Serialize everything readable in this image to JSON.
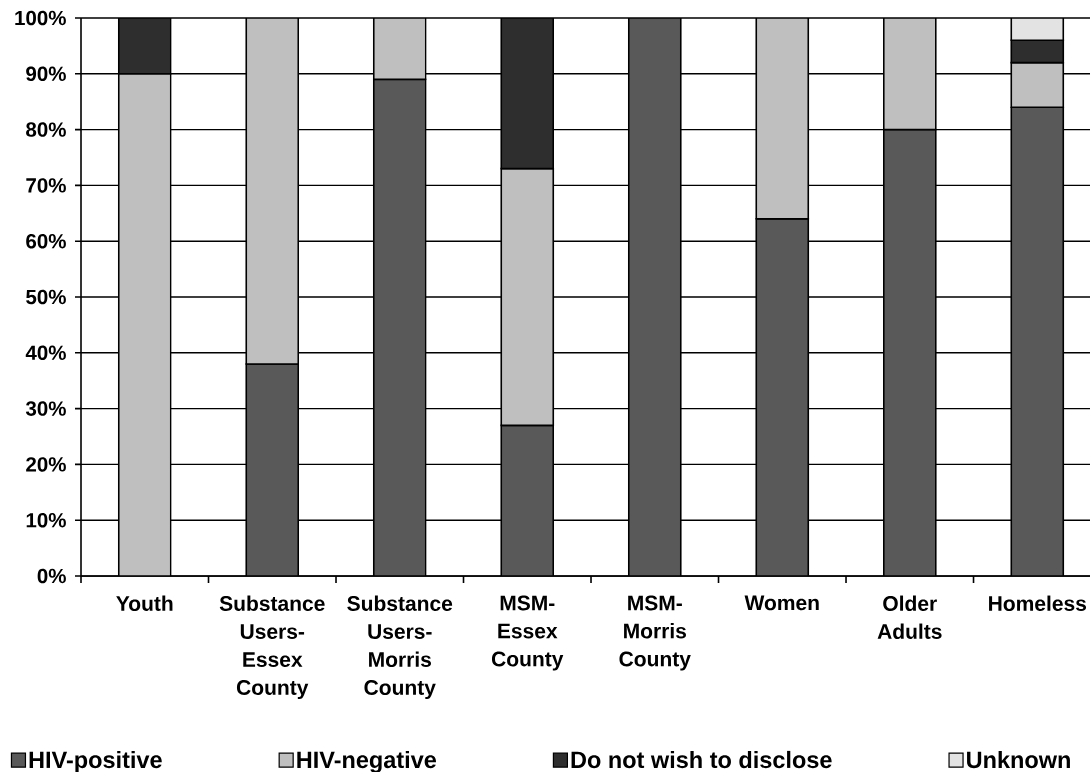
{
  "chart_data": {
    "type": "bar",
    "stacked": true,
    "categories": [
      "Youth",
      "Substance Users-Essex County",
      "Substance Users-Morris County",
      "MSM-Essex County",
      "MSM-Morris County",
      "Women",
      "Older Adults",
      "Homeless"
    ],
    "series": [
      {
        "name": "HIV-positive",
        "color": "#595959",
        "values": [
          0,
          38,
          89,
          27,
          100,
          64,
          80,
          84
        ]
      },
      {
        "name": "HIV-negative",
        "color": "#bfbfbf",
        "values": [
          90,
          62,
          11,
          46,
          0,
          36,
          20,
          8
        ]
      },
      {
        "name": "Do not wish to disclose",
        "color": "#2e2e2e",
        "values": [
          10,
          0,
          0,
          27,
          0,
          0,
          0,
          4
        ]
      },
      {
        "name": "Unknown",
        "color": "#e3e3e3",
        "values": [
          0,
          0,
          0,
          0,
          0,
          0,
          0,
          4
        ]
      }
    ],
    "ylim": [
      0,
      100
    ],
    "yticks": [
      {
        "value": 0,
        "label": "0%"
      },
      {
        "value": 10,
        "label": "10%"
      },
      {
        "value": 20,
        "label": "20%"
      },
      {
        "value": 30,
        "label": "30%"
      },
      {
        "value": 40,
        "label": "40%"
      },
      {
        "value": 50,
        "label": "50%"
      },
      {
        "value": 60,
        "label": "60%"
      },
      {
        "value": 70,
        "label": "70%"
      },
      {
        "value": 80,
        "label": "80%"
      },
      {
        "value": 90,
        "label": "90%"
      },
      {
        "value": 100,
        "label": "100%"
      }
    ],
    "grid": "y",
    "legend": "bottom"
  }
}
